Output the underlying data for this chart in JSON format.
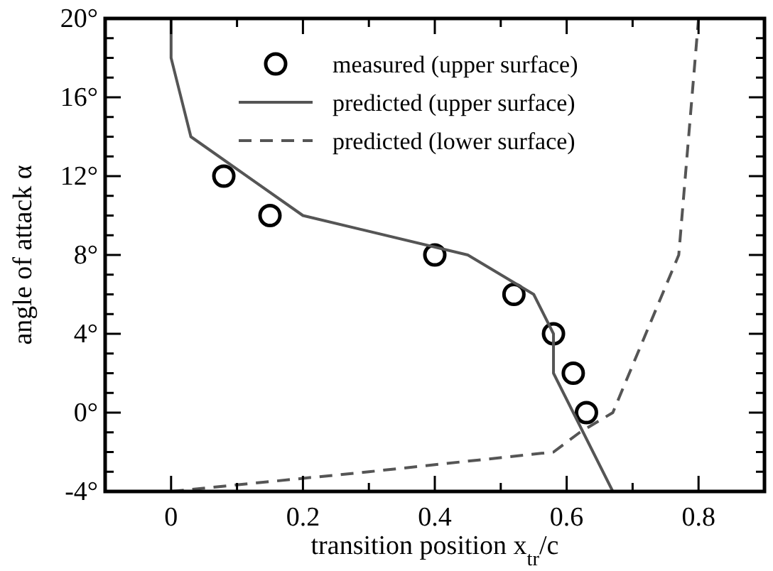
{
  "chart_data": {
    "type": "line",
    "xlabel": "transition position x$_{tr}$/c",
    "ylabel": "angle of attack α",
    "xlim": [
      -0.1,
      0.9
    ],
    "ylim": [
      -4,
      20
    ],
    "xticks": [
      0,
      {
        "value": 0.1,
        "label": null
      },
      0.2,
      {
        "value": 0.3,
        "label": null
      },
      0.4,
      {
        "value": 0.5,
        "label": null
      },
      0.6,
      {
        "value": 0.7,
        "label": null
      },
      0.8
    ],
    "yticks": [
      {
        "value": -4,
        "label": "-4°"
      },
      {
        "value": -3,
        "label": null
      },
      {
        "value": -2,
        "label": null
      },
      {
        "value": -1,
        "label": null
      },
      {
        "value": 0,
        "label": "0°"
      },
      {
        "value": 1,
        "label": null
      },
      {
        "value": 2,
        "label": null
      },
      {
        "value": 3,
        "label": null
      },
      {
        "value": 4,
        "label": "4°"
      },
      {
        "value": 5,
        "label": null
      },
      {
        "value": 6,
        "label": null
      },
      {
        "value": 7,
        "label": null
      },
      {
        "value": 8,
        "label": "8°"
      },
      {
        "value": 9,
        "label": null
      },
      {
        "value": 10,
        "label": null
      },
      {
        "value": 11,
        "label": null
      },
      {
        "value": 12,
        "label": "12°"
      },
      {
        "value": 13,
        "label": null
      },
      {
        "value": 14,
        "label": null
      },
      {
        "value": 15,
        "label": null
      },
      {
        "value": 16,
        "label": "16°"
      },
      {
        "value": 17,
        "label": null
      },
      {
        "value": 18,
        "label": null
      },
      {
        "value": 19,
        "label": null
      },
      {
        "value": 20,
        "label": "20°"
      }
    ],
    "grid": false,
    "legend": "top right",
    "series": [
      {
        "name": "measured (upper surface)",
        "type": "scatter",
        "marker": "circle",
        "color": "#000000",
        "x": [
          0.08,
          0.15,
          0.4,
          0.52,
          0.58,
          0.61,
          0.63
        ],
        "values": [
          12,
          10,
          8,
          6,
          4,
          2,
          0
        ]
      },
      {
        "name": "predicted (upper surface)",
        "type": "line",
        "line_style": "solid",
        "color": "#555555",
        "x": [
          0,
          0,
          0.03,
          0.2,
          0.45,
          0.55,
          0.58,
          0.58,
          0.67
        ],
        "values": [
          20,
          18,
          14,
          10,
          8,
          6,
          4,
          2,
          -4
        ]
      },
      {
        "name": "predicted (lower surface)",
        "type": "line",
        "line_style": "dashed",
        "color": "#555555",
        "x": [
          0,
          0.3,
          0.58,
          0.62,
          0.67,
          0.72,
          0.77,
          0.79,
          0.8
        ],
        "values": [
          -4,
          -3,
          -2,
          -1,
          0,
          4,
          8,
          16,
          20
        ]
      }
    ]
  }
}
